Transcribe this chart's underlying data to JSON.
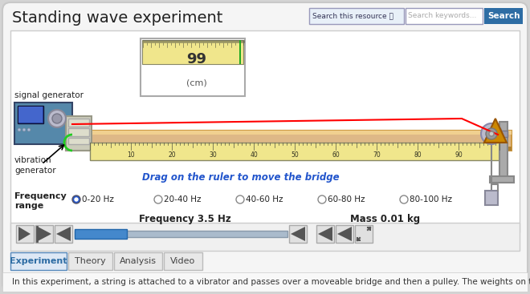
{
  "bg_color": "#d4d4d4",
  "panel_bg": "#f0f0f0",
  "title": "Standing wave experiment",
  "title_fontsize": 14,
  "beam_color": "#deb887",
  "string_color": "#ff0000",
  "freq_label": "Frequency 3.5 Hz",
  "mass_label": "Mass 0.01 kg",
  "drag_label": "Drag on the ruler to move the bridge",
  "radio_options": [
    "0-20 Hz",
    "20-40 Hz",
    "40-60 Hz",
    "60-80 Hz",
    "80-100 Hz"
  ],
  "tab_labels": [
    "Experiment",
    "Theory",
    "Analysis",
    "Video"
  ],
  "bottom_text": "In this experiment, a string is attached to a vibrator and passes over a moveable bridge and then a pulley. The weights on the",
  "search_button_color": "#2e6da4",
  "blue_text_color": "#2255cc",
  "signal_label": "signal generator",
  "vibration_label": "vibration\ngenerator",
  "measurement_value": "99",
  "measurement_unit": "(cm)"
}
